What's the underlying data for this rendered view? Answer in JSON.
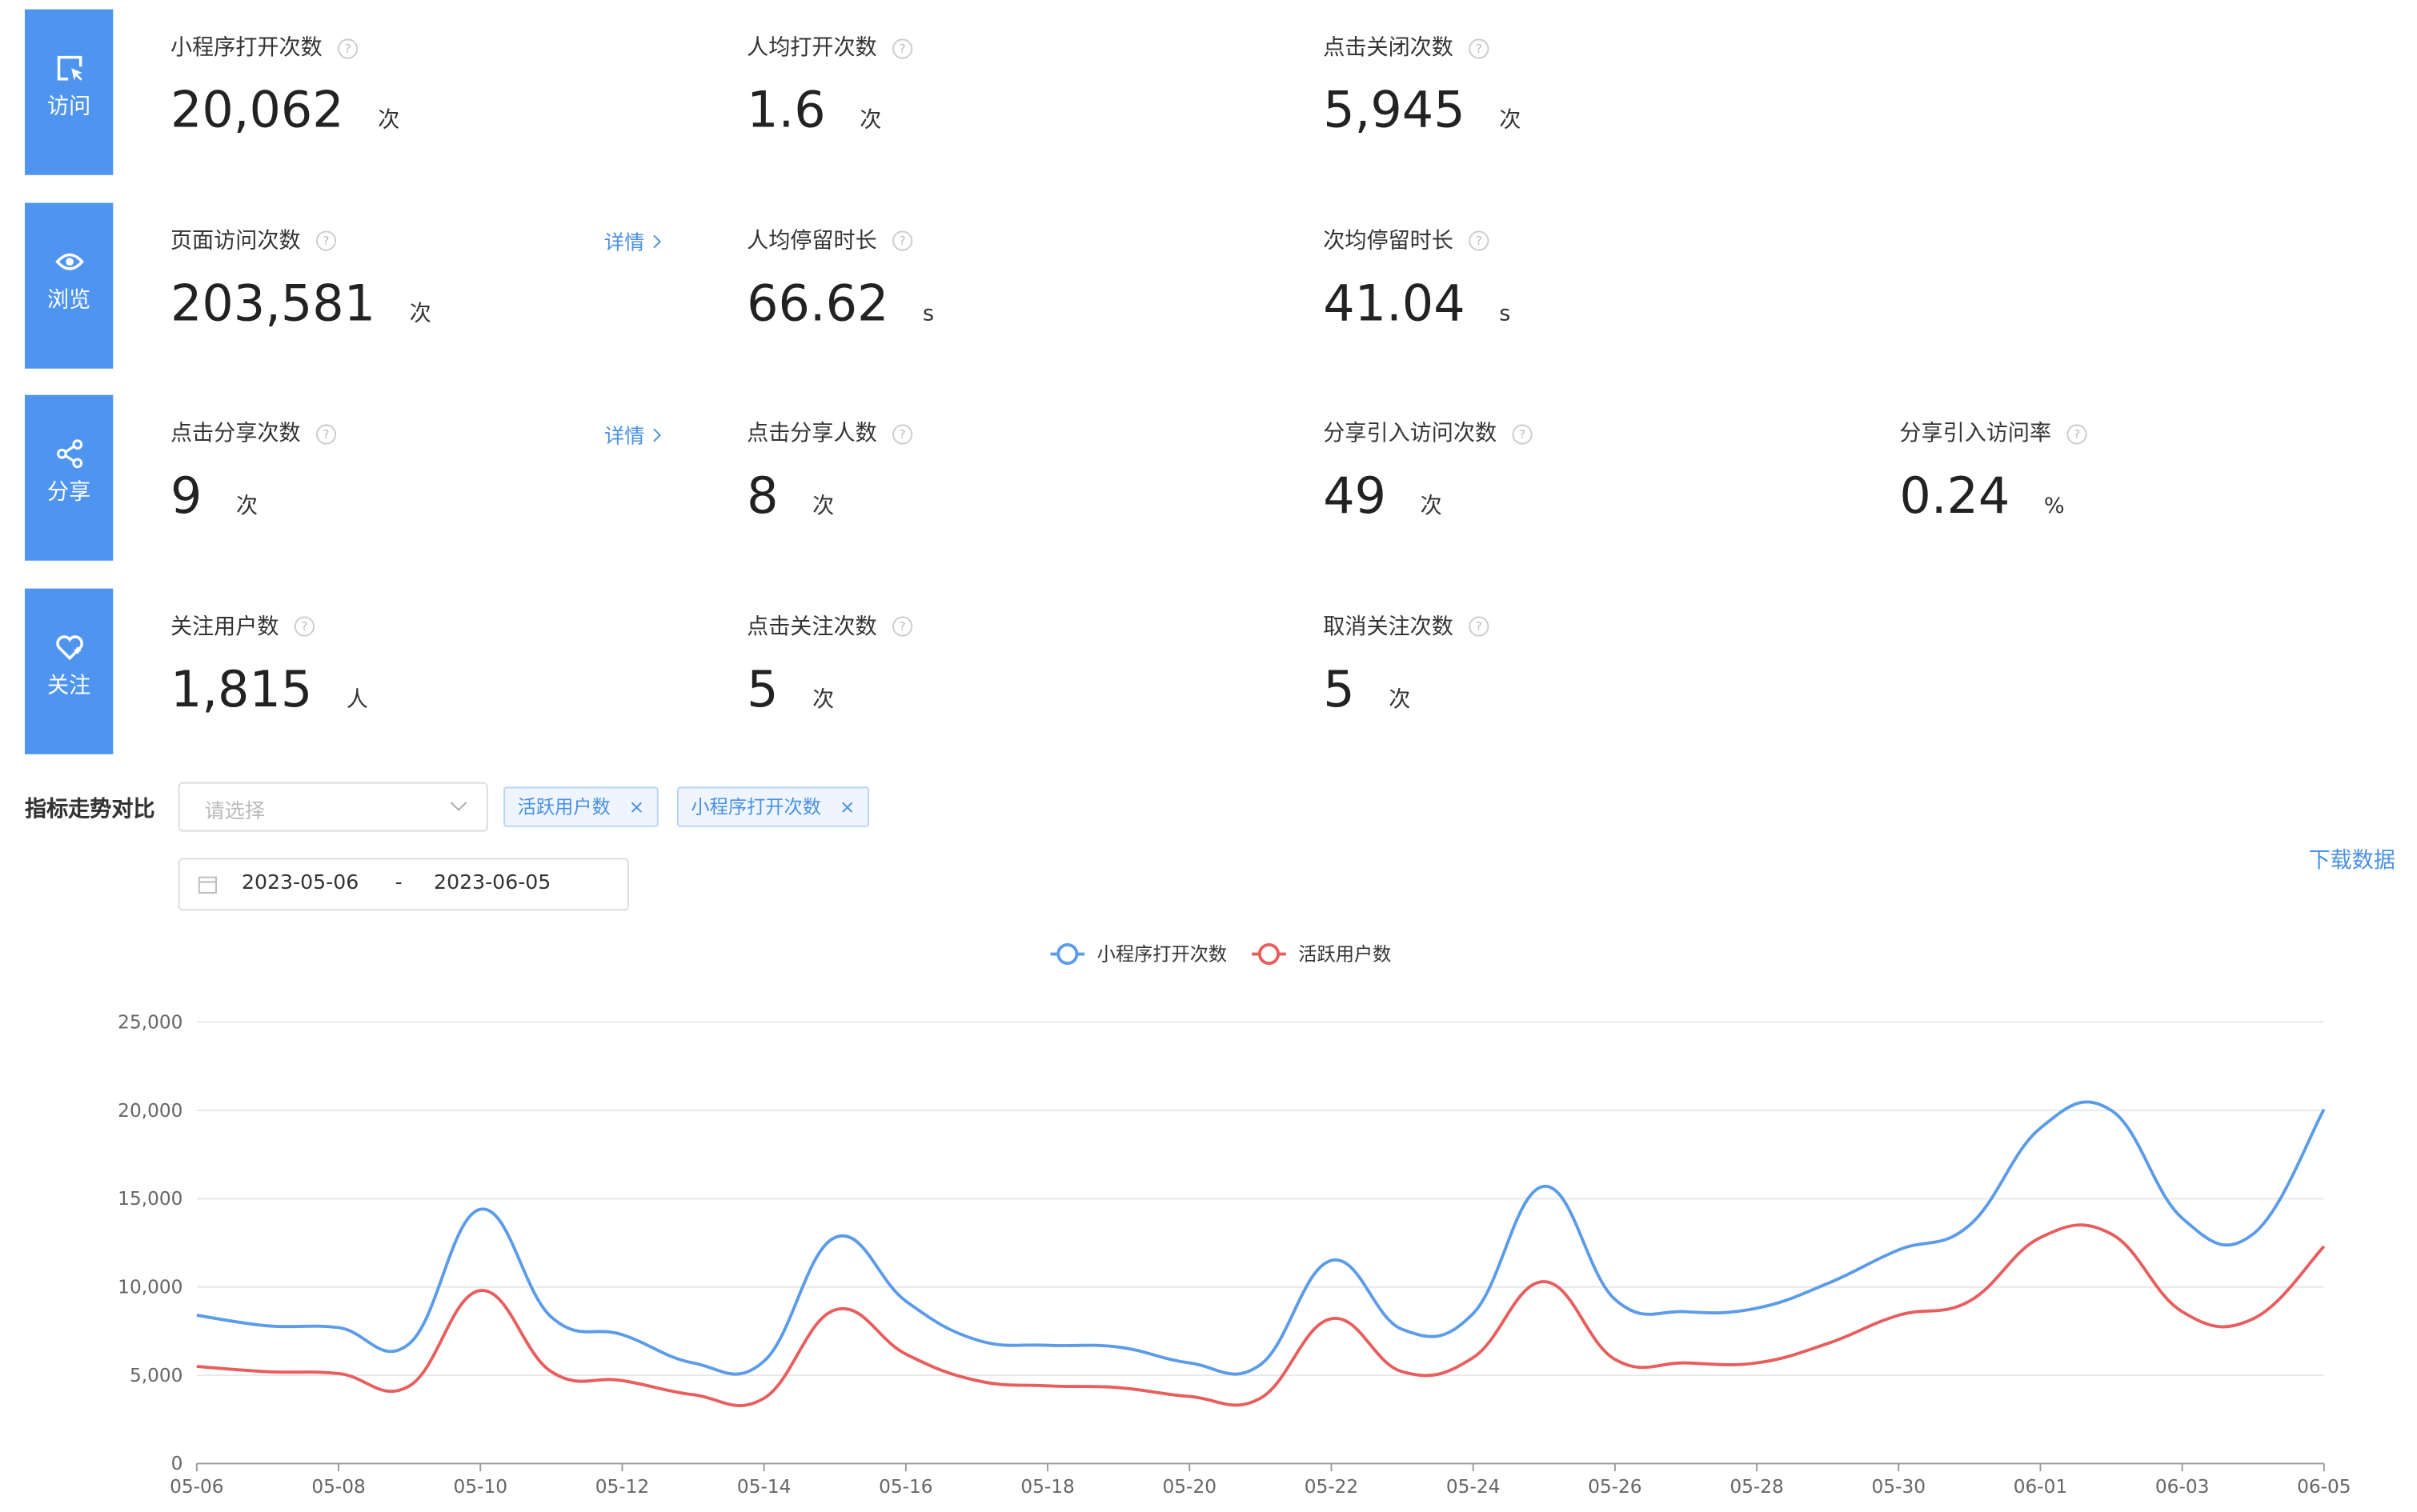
{
  "sections": [
    {
      "icon_label": "访问",
      "metrics": [
        {
          "label": "小程序打开次数",
          "value": "20,062",
          "unit": "次"
        },
        {
          "label": "人均打开次数",
          "value": "1.6",
          "unit": "次"
        },
        {
          "label": "点击关闭次数",
          "value": "5,945",
          "unit": "次"
        }
      ]
    },
    {
      "icon_label": "浏览",
      "detail": "详情",
      "metrics": [
        {
          "label": "页面访问次数",
          "value": "203,581",
          "unit": "次"
        },
        {
          "label": "人均停留时长",
          "value": "66.62",
          "unit": "s"
        },
        {
          "label": "次均停留时长",
          "value": "41.04",
          "unit": "s"
        }
      ]
    },
    {
      "icon_label": "分享",
      "detail": "详情",
      "metrics": [
        {
          "label": "点击分享次数",
          "value": "9",
          "unit": "次"
        },
        {
          "label": "点击分享人数",
          "value": "8",
          "unit": "次"
        },
        {
          "label": "分享引入访问次数",
          "value": "49",
          "unit": "次"
        },
        {
          "label": "分享引入访问率",
          "value": "0.24",
          "unit": "%"
        }
      ]
    },
    {
      "icon_label": "关注",
      "metrics": [
        {
          "label": "关注用户数",
          "value": "1,815",
          "unit": "人"
        },
        {
          "label": "点击关注次数",
          "value": "5",
          "unit": "次"
        },
        {
          "label": "取消关注次数",
          "value": "5",
          "unit": "次"
        }
      ]
    }
  ],
  "trend": {
    "title": "指标走势对比",
    "placeholder": "请选择",
    "tags": [
      "活跃用户数",
      "小程序打开次数"
    ],
    "date_start": "2023-05-06",
    "date_sep": "-",
    "date_end": "2023-06-05",
    "download": "下载数据"
  },
  "chart_data": {
    "type": "line",
    "categories": [
      "05-06",
      null,
      "05-08",
      null,
      "05-10",
      null,
      "05-12",
      null,
      "05-14",
      null,
      "05-16",
      null,
      "05-18",
      null,
      "05-20",
      null,
      "05-22",
      null,
      "05-24",
      null,
      "05-26",
      null,
      "05-28",
      null,
      "05-30",
      null,
      "06-01",
      null,
      "06-03",
      null,
      "06-05"
    ],
    "series": [
      {
        "name": "小程序打开次数",
        "color": "#5b9be8",
        "values": [
          8400,
          7800,
          7700,
          6800,
          14400,
          8300,
          7300,
          5700,
          5800,
          12800,
          9200,
          7000,
          6700,
          6600,
          5700,
          5600,
          11500,
          7600,
          8500,
          15700,
          9300,
          8600,
          8800,
          10200,
          12100,
          13500,
          19000,
          20000,
          13900,
          13000,
          20062
        ]
      },
      {
        "name": "活跃用户数",
        "color": "#e85d5d",
        "values": [
          5500,
          5200,
          5100,
          4400,
          9800,
          5200,
          4700,
          3900,
          3700,
          8700,
          6200,
          4700,
          4400,
          4300,
          3800,
          3700,
          8200,
          5200,
          6000,
          10300,
          5900,
          5700,
          5700,
          6800,
          8400,
          9200,
          12800,
          13000,
          8600,
          8200,
          12300
        ]
      }
    ],
    "ylim": [
      0,
      25000
    ],
    "yticks": [
      0,
      {
        "value": 5000,
        "label": "5,000"
      },
      {
        "value": 10000,
        "label": "10,000"
      },
      {
        "value": 15000,
        "label": "15,000"
      },
      {
        "value": 20000,
        "label": "20,000"
      },
      {
        "value": 25000,
        "label": "25,000"
      }
    ],
    "grid": true
  }
}
